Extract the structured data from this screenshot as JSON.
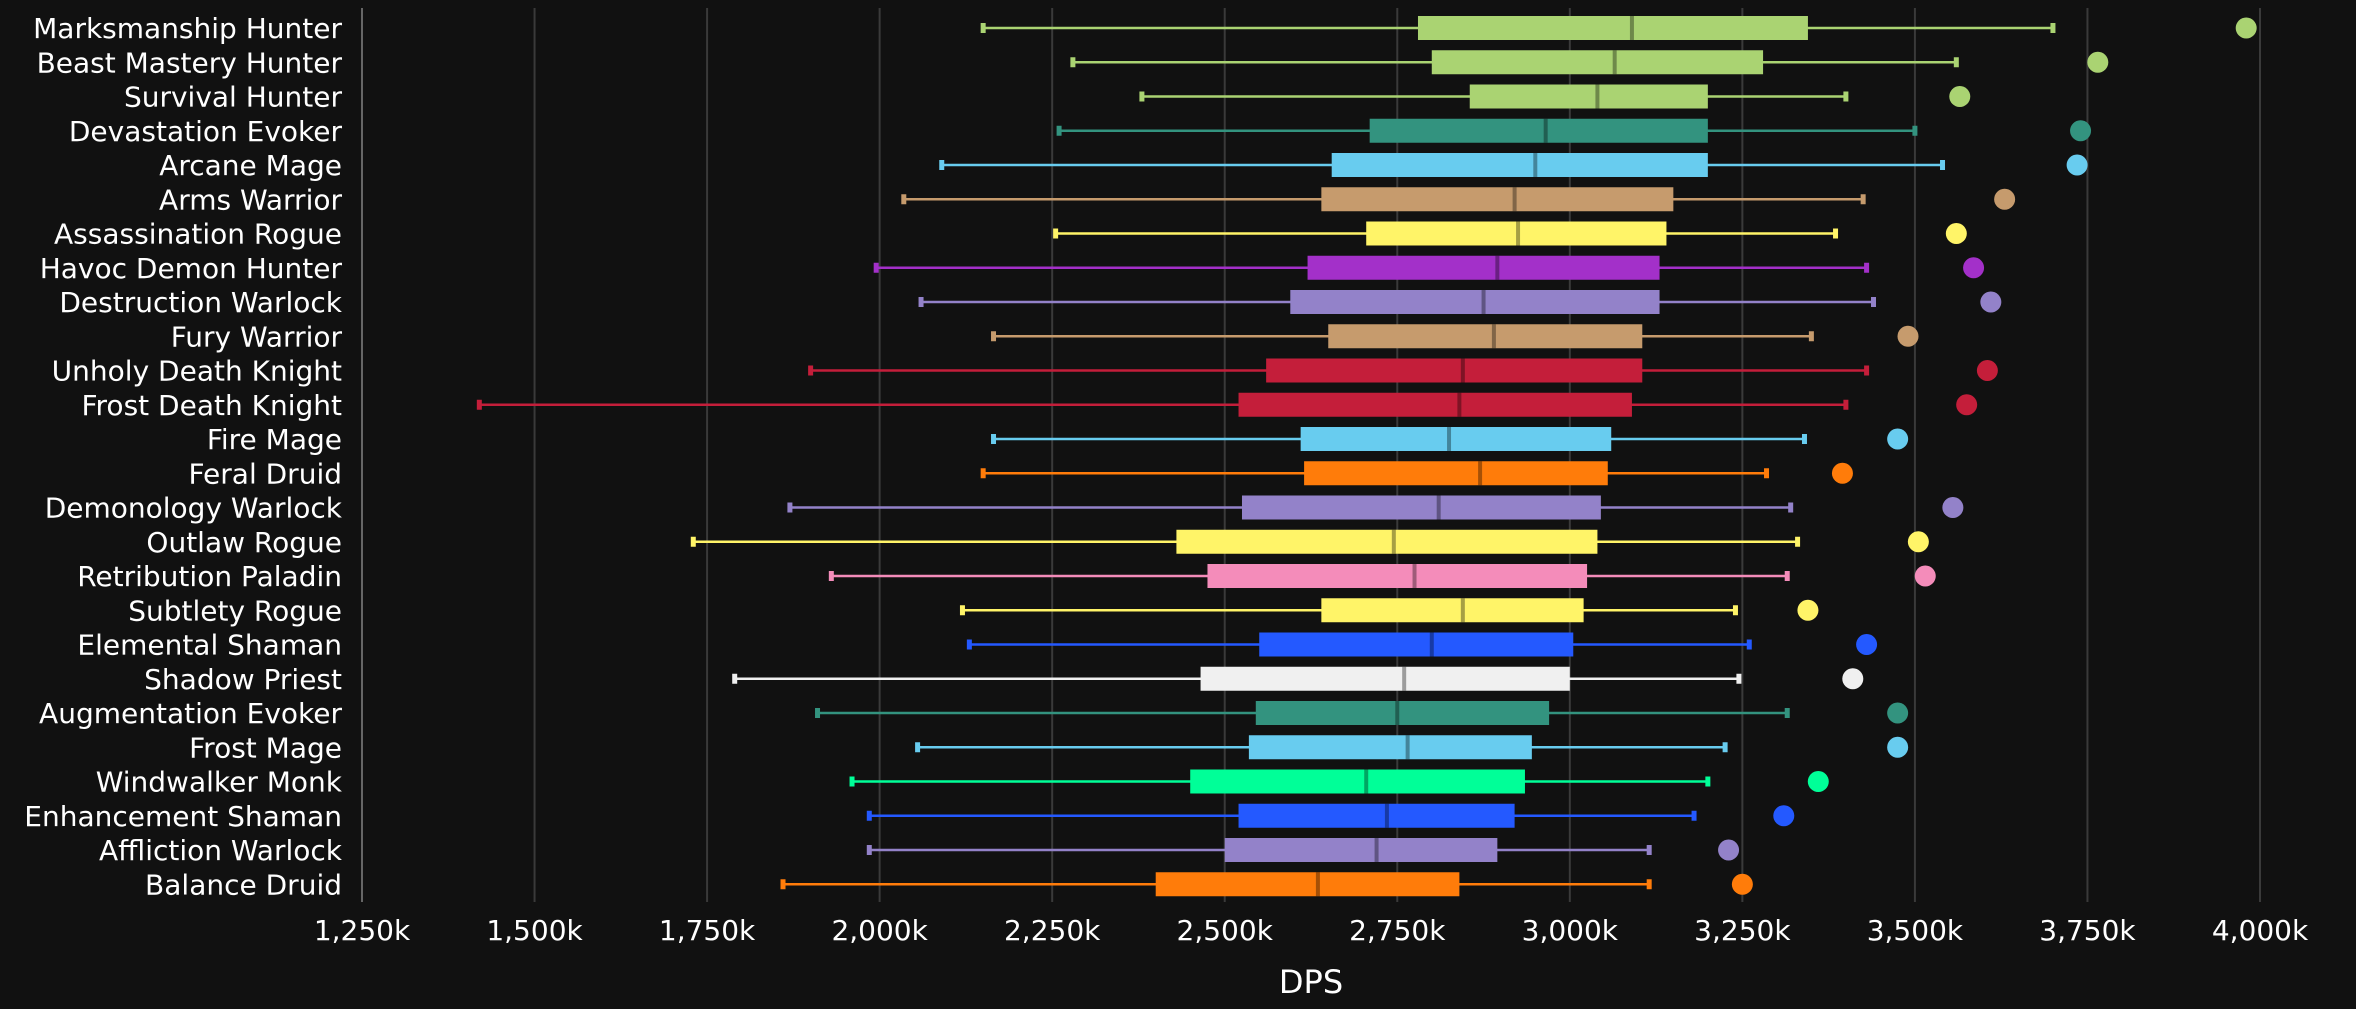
{
  "chart_data": {
    "type": "box",
    "xlabel": "DPS",
    "xlim": [
      1250,
      4000
    ],
    "xticks": [
      1250,
      1500,
      1750,
      2000,
      2250,
      2500,
      2750,
      3000,
      3250,
      3500,
      3750,
      4000
    ],
    "xtick_labels": [
      "1,250k",
      "1,500k",
      "1,750k",
      "2,000k",
      "2,250k",
      "2,500k",
      "2,750k",
      "3,000k",
      "3,250k",
      "3,500k",
      "3,750k",
      "4,000k"
    ],
    "grid": "vertical",
    "series": [
      {
        "name": "Marksmanship Hunter",
        "color": "#aad372",
        "min": 2150,
        "q1": 2780,
        "median": 3090,
        "q3": 3345,
        "max": 3700,
        "outlier": 3980
      },
      {
        "name": "Beast Mastery Hunter",
        "color": "#aad372",
        "min": 2280,
        "q1": 2800,
        "median": 3065,
        "q3": 3280,
        "max": 3560,
        "outlier": 3765
      },
      {
        "name": "Survival Hunter",
        "color": "#aad372",
        "min": 2380,
        "q1": 2855,
        "median": 3040,
        "q3": 3200,
        "max": 3400,
        "outlier": 3565
      },
      {
        "name": "Devastation Evoker",
        "color": "#33937f",
        "min": 2260,
        "q1": 2710,
        "median": 2965,
        "q3": 3200,
        "max": 3500,
        "outlier": 3740
      },
      {
        "name": "Arcane Mage",
        "color": "#68ccef",
        "min": 2090,
        "q1": 2655,
        "median": 2950,
        "q3": 3200,
        "max": 3540,
        "outlier": 3735
      },
      {
        "name": "Arms Warrior",
        "color": "#c69b6d",
        "min": 2035,
        "q1": 2640,
        "median": 2920,
        "q3": 3150,
        "max": 3425,
        "outlier": 3630
      },
      {
        "name": "Assassination Rogue",
        "color": "#fff468",
        "min": 2255,
        "q1": 2705,
        "median": 2925,
        "q3": 3140,
        "max": 3385,
        "outlier": 3560
      },
      {
        "name": "Havoc Demon Hunter",
        "color": "#a330c9",
        "min": 1995,
        "q1": 2620,
        "median": 2895,
        "q3": 3130,
        "max": 3430,
        "outlier": 3585
      },
      {
        "name": "Destruction Warlock",
        "color": "#9382c9",
        "min": 2060,
        "q1": 2595,
        "median": 2875,
        "q3": 3130,
        "max": 3440,
        "outlier": 3610
      },
      {
        "name": "Fury Warrior",
        "color": "#c69b6d",
        "min": 2165,
        "q1": 2650,
        "median": 2890,
        "q3": 3105,
        "max": 3350,
        "outlier": 3490
      },
      {
        "name": "Unholy Death Knight",
        "color": "#c41e3a",
        "min": 1900,
        "q1": 2560,
        "median": 2845,
        "q3": 3105,
        "max": 3430,
        "outlier": 3605
      },
      {
        "name": "Frost Death Knight",
        "color": "#c41e3a",
        "min": 1420,
        "q1": 2520,
        "median": 2840,
        "q3": 3090,
        "max": 3400,
        "outlier": 3575
      },
      {
        "name": "Fire Mage",
        "color": "#68ccef",
        "min": 2165,
        "q1": 2610,
        "median": 2825,
        "q3": 3060,
        "max": 3340,
        "outlier": 3475
      },
      {
        "name": "Feral Druid",
        "color": "#ff7c0a",
        "min": 2150,
        "q1": 2615,
        "median": 2870,
        "q3": 3055,
        "max": 3285,
        "outlier": 3395
      },
      {
        "name": "Demonology Warlock",
        "color": "#9382c9",
        "min": 1870,
        "q1": 2525,
        "median": 2810,
        "q3": 3045,
        "max": 3320,
        "outlier": 3555
      },
      {
        "name": "Outlaw Rogue",
        "color": "#fff468",
        "min": 1730,
        "q1": 2430,
        "median": 2745,
        "q3": 3040,
        "max": 3330,
        "outlier": 3505
      },
      {
        "name": "Retribution Paladin",
        "color": "#f48cba",
        "min": 1930,
        "q1": 2475,
        "median": 2775,
        "q3": 3025,
        "max": 3315,
        "outlier": 3515
      },
      {
        "name": "Subtlety Rogue",
        "color": "#fff468",
        "min": 2120,
        "q1": 2640,
        "median": 2845,
        "q3": 3020,
        "max": 3240,
        "outlier": 3345
      },
      {
        "name": "Elemental Shaman",
        "color": "#2459ff",
        "min": 2130,
        "q1": 2550,
        "median": 2800,
        "q3": 3005,
        "max": 3260,
        "outlier": 3430
      },
      {
        "name": "Shadow Priest",
        "color": "#f0f0f0",
        "min": 1790,
        "q1": 2465,
        "median": 2760,
        "q3": 3000,
        "max": 3245,
        "outlier": 3410
      },
      {
        "name": "Augmentation Evoker",
        "color": "#33937f",
        "min": 1910,
        "q1": 2545,
        "median": 2750,
        "q3": 2970,
        "max": 3315,
        "outlier": 3475
      },
      {
        "name": "Frost Mage",
        "color": "#68ccef",
        "min": 2055,
        "q1": 2535,
        "median": 2765,
        "q3": 2945,
        "max": 3225,
        "outlier": 3475
      },
      {
        "name": "Windwalker Monk",
        "color": "#00ff98",
        "min": 1960,
        "q1": 2450,
        "median": 2705,
        "q3": 2935,
        "max": 3200,
        "outlier": 3360
      },
      {
        "name": "Enhancement Shaman",
        "color": "#2459ff",
        "min": 1985,
        "q1": 2520,
        "median": 2735,
        "q3": 2920,
        "max": 3180,
        "outlier": 3310
      },
      {
        "name": "Affliction Warlock",
        "color": "#9382c9",
        "min": 1985,
        "q1": 2500,
        "median": 2720,
        "q3": 2895,
        "max": 3115,
        "outlier": 3230
      },
      {
        "name": "Balance Druid",
        "color": "#ff7c0a",
        "min": 1860,
        "q1": 2400,
        "median": 2635,
        "q3": 2840,
        "max": 3115,
        "outlier": 3250
      }
    ]
  }
}
